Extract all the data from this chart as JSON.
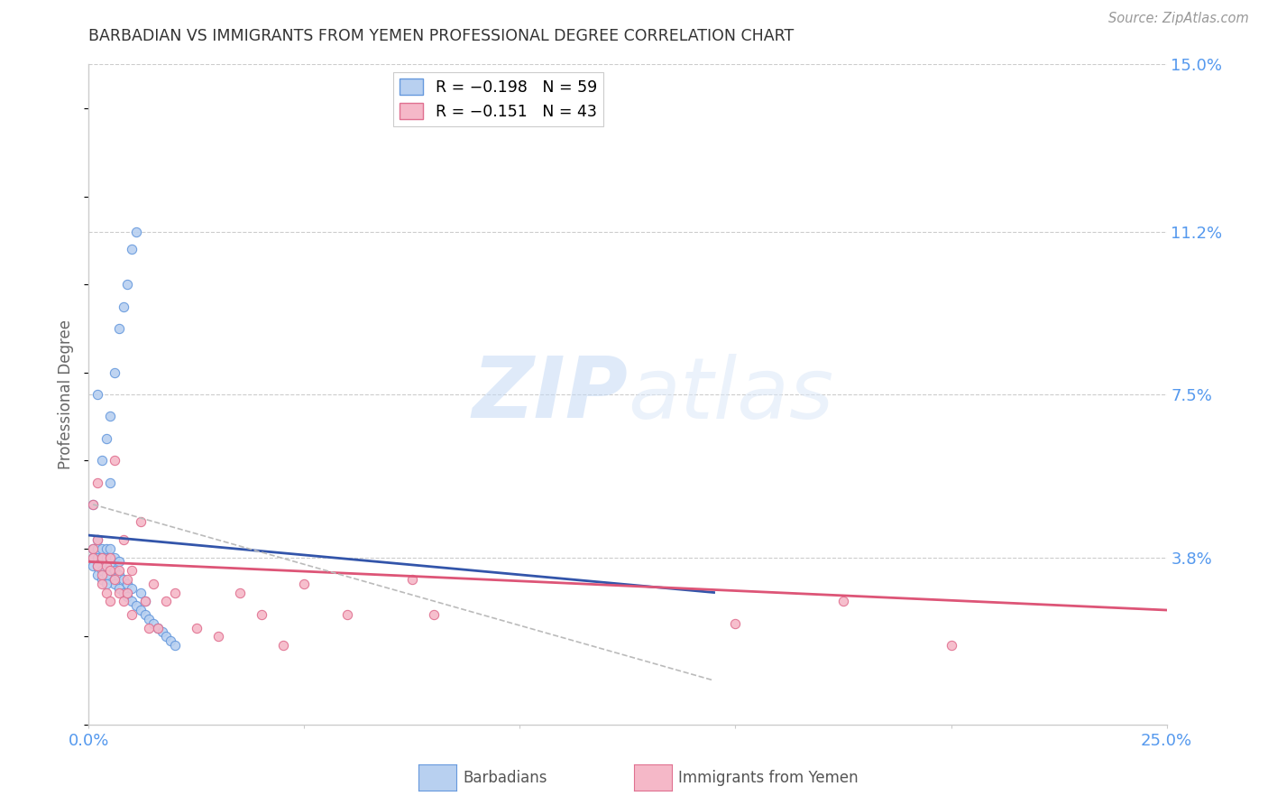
{
  "title": "BARBADIAN VS IMMIGRANTS FROM YEMEN PROFESSIONAL DEGREE CORRELATION CHART",
  "source": "Source: ZipAtlas.com",
  "ylabel": "Professional Degree",
  "xlim": [
    0.0,
    0.25
  ],
  "ylim": [
    0.0,
    0.15
  ],
  "yticks": [
    0.038,
    0.075,
    0.112,
    0.15
  ],
  "ytick_labels": [
    "3.8%",
    "7.5%",
    "11.2%",
    "15.0%"
  ],
  "xticks": [
    0.0,
    0.05,
    0.1,
    0.15,
    0.2,
    0.25
  ],
  "xtick_labels": [
    "0.0%",
    "",
    "",
    "",
    "",
    "25.0%"
  ],
  "barbadian_color": "#b8d0f0",
  "barbadian_edge": "#6699dd",
  "yemen_color": "#f5b8c8",
  "yemen_edge": "#e07090",
  "blue_line_color": "#3355aa",
  "pink_line_color": "#dd5577",
  "dashed_line_color": "#bbbbbb",
  "axis_label_color": "#5599ee",
  "grid_color": "#cccccc",
  "watermark_zip": "ZIP",
  "watermark_atlas": "atlas",
  "barbadians_x": [
    0.001,
    0.001,
    0.001,
    0.001,
    0.002,
    0.002,
    0.002,
    0.002,
    0.003,
    0.003,
    0.003,
    0.003,
    0.003,
    0.004,
    0.004,
    0.004,
    0.004,
    0.005,
    0.005,
    0.005,
    0.005,
    0.005,
    0.005,
    0.006,
    0.006,
    0.006,
    0.006,
    0.007,
    0.007,
    0.007,
    0.007,
    0.008,
    0.008,
    0.008,
    0.009,
    0.009,
    0.009,
    0.01,
    0.01,
    0.01,
    0.011,
    0.011,
    0.012,
    0.012,
    0.013,
    0.013,
    0.014,
    0.015,
    0.016,
    0.017,
    0.018,
    0.019,
    0.02,
    0.002,
    0.002,
    0.003,
    0.003,
    0.004,
    0.004
  ],
  "barbadians_y": [
    0.04,
    0.038,
    0.036,
    0.05,
    0.038,
    0.04,
    0.042,
    0.075,
    0.036,
    0.038,
    0.04,
    0.034,
    0.06,
    0.035,
    0.038,
    0.04,
    0.065,
    0.033,
    0.036,
    0.038,
    0.04,
    0.055,
    0.07,
    0.032,
    0.035,
    0.038,
    0.08,
    0.031,
    0.034,
    0.037,
    0.09,
    0.03,
    0.033,
    0.095,
    0.029,
    0.032,
    0.1,
    0.028,
    0.031,
    0.108,
    0.027,
    0.112,
    0.026,
    0.03,
    0.025,
    0.028,
    0.024,
    0.023,
    0.022,
    0.021,
    0.02,
    0.019,
    0.018,
    0.036,
    0.034,
    0.035,
    0.033,
    0.034,
    0.032
  ],
  "yemen_x": [
    0.001,
    0.001,
    0.001,
    0.002,
    0.002,
    0.002,
    0.003,
    0.003,
    0.003,
    0.004,
    0.004,
    0.005,
    0.005,
    0.005,
    0.006,
    0.006,
    0.007,
    0.007,
    0.008,
    0.008,
    0.009,
    0.009,
    0.01,
    0.01,
    0.012,
    0.013,
    0.014,
    0.015,
    0.016,
    0.018,
    0.02,
    0.025,
    0.03,
    0.035,
    0.04,
    0.045,
    0.05,
    0.06,
    0.075,
    0.08,
    0.15,
    0.175,
    0.2
  ],
  "yemen_y": [
    0.04,
    0.038,
    0.05,
    0.036,
    0.042,
    0.055,
    0.034,
    0.038,
    0.032,
    0.036,
    0.03,
    0.035,
    0.038,
    0.028,
    0.033,
    0.06,
    0.03,
    0.035,
    0.042,
    0.028,
    0.03,
    0.033,
    0.035,
    0.025,
    0.046,
    0.028,
    0.022,
    0.032,
    0.022,
    0.028,
    0.03,
    0.022,
    0.02,
    0.03,
    0.025,
    0.018,
    0.032,
    0.025,
    0.033,
    0.025,
    0.023,
    0.028,
    0.018
  ],
  "blue_line_x": [
    0.0,
    0.145
  ],
  "blue_line_y": [
    0.043,
    0.03
  ],
  "pink_line_x": [
    0.0,
    0.25
  ],
  "pink_line_y": [
    0.037,
    0.026
  ],
  "dashed_line_x": [
    0.001,
    0.145
  ],
  "dashed_line_y": [
    0.05,
    0.01
  ]
}
